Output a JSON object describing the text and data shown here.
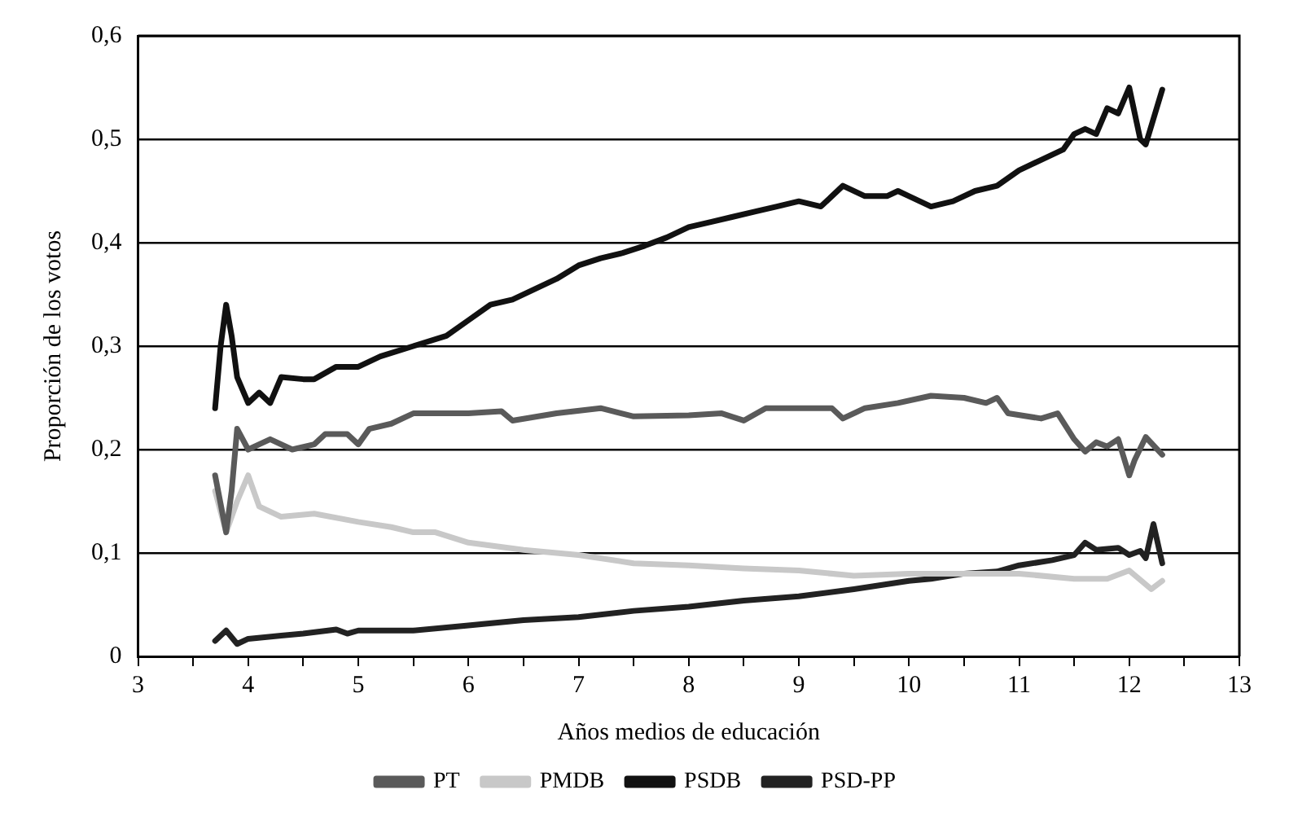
{
  "chart_data": {
    "type": "line",
    "xlabel": "Años medios de educación",
    "ylabel": "Proporción de los votos",
    "xlim": [
      3,
      13
    ],
    "xticks": [
      3,
      {
        "value": 3.5,
        "label": null
      },
      4,
      {
        "value": 4.5,
        "label": null
      },
      5,
      {
        "value": 5.5,
        "label": null
      },
      6,
      {
        "value": 6.5,
        "label": null
      },
      7,
      {
        "value": 7.5,
        "label": null
      },
      8,
      {
        "value": 8.5,
        "label": null
      },
      9,
      {
        "value": 9.5,
        "label": null
      },
      10,
      {
        "value": 10.5,
        "label": null
      },
      11,
      {
        "value": 11.5,
        "label": null
      },
      12,
      {
        "value": 12.5,
        "label": null
      },
      13
    ],
    "ylim": [
      0,
      0.6
    ],
    "yticks": [
      0,
      {
        "value": 0.1,
        "label": "0,1"
      },
      {
        "value": 0.2,
        "label": "0,2"
      },
      {
        "value": 0.3,
        "label": "0,3"
      },
      {
        "value": 0.4,
        "label": "0,4"
      },
      {
        "value": 0.5,
        "label": "0,5"
      },
      {
        "value": 0.6,
        "label": "0,6"
      }
    ],
    "grid": "y",
    "legend": "bottom",
    "marker": "none",
    "line_style": "solid",
    "series": [
      {
        "name": "PT",
        "color": "#5a5a5a",
        "x": [
          3.7,
          3.8,
          3.85,
          3.9,
          4.0,
          4.1,
          4.2,
          4.4,
          4.6,
          4.7,
          4.9,
          5.0,
          5.1,
          5.3,
          5.5,
          5.7,
          6.0,
          6.3,
          6.4,
          6.8,
          7.2,
          7.5,
          8.0,
          8.3,
          8.5,
          8.7,
          9.0,
          9.3,
          9.4,
          9.6,
          9.9,
          10.2,
          10.5,
          10.7,
          10.8,
          10.9,
          11.2,
          11.35,
          11.5,
          11.6,
          11.7,
          11.8,
          11.9,
          12.0,
          12.05,
          12.15,
          12.3
        ],
        "values": [
          0.175,
          0.12,
          0.16,
          0.22,
          0.2,
          0.205,
          0.21,
          0.2,
          0.205,
          0.215,
          0.215,
          0.205,
          0.22,
          0.225,
          0.235,
          0.235,
          0.235,
          0.237,
          0.228,
          0.235,
          0.24,
          0.232,
          0.233,
          0.235,
          0.228,
          0.24,
          0.24,
          0.24,
          0.23,
          0.24,
          0.245,
          0.252,
          0.25,
          0.245,
          0.25,
          0.235,
          0.23,
          0.235,
          0.21,
          0.198,
          0.207,
          0.203,
          0.21,
          0.175,
          0.19,
          0.212,
          0.195
        ]
      },
      {
        "name": "PMDB",
        "color": "#c8c8c8",
        "x": [
          3.7,
          3.8,
          3.9,
          4.0,
          4.1,
          4.3,
          4.6,
          5.0,
          5.3,
          5.5,
          5.7,
          6.0,
          6.5,
          7.0,
          7.5,
          8.0,
          8.5,
          9.0,
          9.5,
          10.0,
          10.5,
          11.0,
          11.5,
          11.8,
          12.0,
          12.2,
          12.3
        ],
        "values": [
          0.16,
          0.12,
          0.15,
          0.175,
          0.145,
          0.135,
          0.138,
          0.13,
          0.125,
          0.12,
          0.12,
          0.11,
          0.103,
          0.098,
          0.09,
          0.088,
          0.085,
          0.083,
          0.078,
          0.08,
          0.08,
          0.08,
          0.075,
          0.075,
          0.083,
          0.065,
          0.073
        ]
      },
      {
        "name": "PSDB",
        "color": "#111111",
        "x": [
          3.7,
          3.75,
          3.8,
          3.85,
          3.9,
          4.0,
          4.1,
          4.2,
          4.3,
          4.5,
          4.6,
          4.8,
          5.0,
          5.2,
          5.5,
          5.8,
          6.0,
          6.2,
          6.4,
          6.6,
          6.8,
          7.0,
          7.2,
          7.4,
          7.6,
          7.8,
          8.0,
          8.2,
          8.4,
          8.6,
          8.8,
          9.0,
          9.2,
          9.4,
          9.6,
          9.8,
          9.9,
          10.0,
          10.2,
          10.4,
          10.6,
          10.8,
          11.0,
          11.2,
          11.4,
          11.5,
          11.6,
          11.7,
          11.8,
          11.9,
          12.0,
          12.1,
          12.15,
          12.3
        ],
        "values": [
          0.24,
          0.3,
          0.34,
          0.31,
          0.27,
          0.245,
          0.255,
          0.245,
          0.27,
          0.268,
          0.268,
          0.28,
          0.28,
          0.29,
          0.3,
          0.31,
          0.325,
          0.34,
          0.345,
          0.355,
          0.365,
          0.378,
          0.385,
          0.39,
          0.397,
          0.405,
          0.415,
          0.42,
          0.425,
          0.43,
          0.435,
          0.44,
          0.435,
          0.455,
          0.445,
          0.445,
          0.45,
          0.445,
          0.435,
          0.44,
          0.45,
          0.455,
          0.47,
          0.48,
          0.49,
          0.505,
          0.51,
          0.505,
          0.53,
          0.525,
          0.55,
          0.5,
          0.495,
          0.548
        ]
      },
      {
        "name": "PSD-PP",
        "color": "#222222",
        "x": [
          3.7,
          3.8,
          3.9,
          4.0,
          4.3,
          4.5,
          4.8,
          4.9,
          5.0,
          5.5,
          6.0,
          6.5,
          7.0,
          7.5,
          8.0,
          8.5,
          9.0,
          9.5,
          10.0,
          10.2,
          10.5,
          10.8,
          11.0,
          11.3,
          11.5,
          11.6,
          11.7,
          11.9,
          12.0,
          12.1,
          12.15,
          12.22,
          12.3
        ],
        "values": [
          0.015,
          0.025,
          0.012,
          0.017,
          0.02,
          0.022,
          0.026,
          0.022,
          0.025,
          0.025,
          0.03,
          0.035,
          0.038,
          0.044,
          0.048,
          0.054,
          0.058,
          0.065,
          0.073,
          0.075,
          0.08,
          0.082,
          0.088,
          0.093,
          0.098,
          0.11,
          0.103,
          0.105,
          0.098,
          0.102,
          0.095,
          0.128,
          0.09
        ]
      }
    ]
  }
}
